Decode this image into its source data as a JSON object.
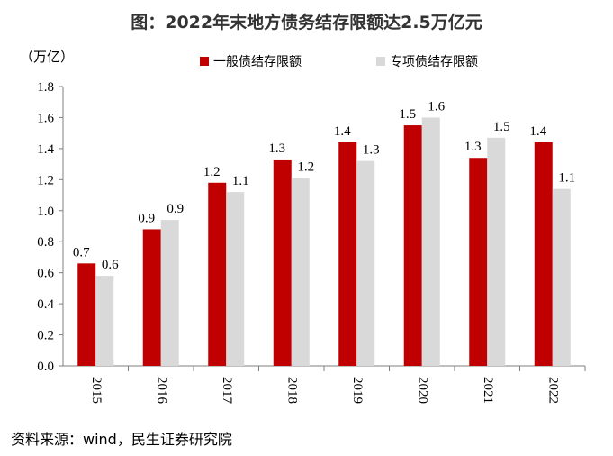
{
  "title": "图：2022年末地方债务结存限额达2.5万亿元",
  "source": "资料来源：wind，民生证券研究院",
  "chart_data": {
    "type": "bar",
    "categories": [
      "2015",
      "2016",
      "2017",
      "2018",
      "2019",
      "2020",
      "2021",
      "2022"
    ],
    "series": [
      {
        "name": "一般债结存限额",
        "color": "#C00000",
        "values": [
          0.66,
          0.88,
          1.18,
          1.33,
          1.44,
          1.55,
          1.34,
          1.44
        ],
        "labels": [
          "0.7",
          "0.9",
          "1.2",
          "1.3",
          "1.4",
          "1.5",
          "1.3",
          "1.4"
        ]
      },
      {
        "name": "专项债结存限额",
        "color": "#D9D9D9",
        "values": [
          0.58,
          0.94,
          1.12,
          1.21,
          1.32,
          1.6,
          1.47,
          1.14
        ],
        "labels": [
          "0.6",
          "0.9",
          "1.1",
          "1.2",
          "1.3",
          "1.6",
          "1.5",
          "1.1"
        ]
      }
    ],
    "ylabel": "（万亿）",
    "ylim": [
      0,
      1.8
    ],
    "yticks": [
      "0.0",
      "0.2",
      "0.4",
      "0.6",
      "0.8",
      "1.0",
      "1.2",
      "1.4",
      "1.6",
      "1.8"
    ],
    "legend_position": "top",
    "grid": false
  }
}
